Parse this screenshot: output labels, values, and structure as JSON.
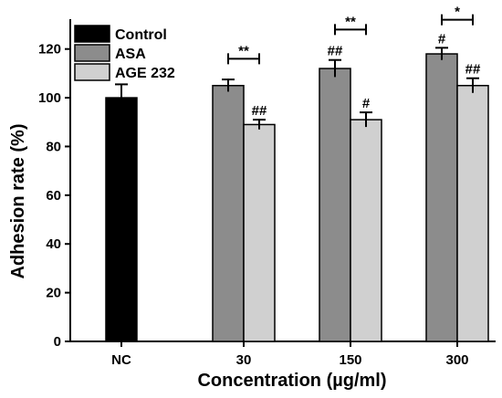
{
  "chart_data": {
    "type": "bar",
    "title": "",
    "xlabel": "Concentration (µg/ml)",
    "ylabel": "Adhesion rate (%)",
    "ylim": [
      0,
      130
    ],
    "yticks": [
      0,
      20,
      40,
      60,
      80,
      100,
      120
    ],
    "categories": [
      "NC",
      "30",
      "150",
      "300"
    ],
    "grid": false,
    "legend_position": "top-left",
    "colors": {
      "Control": "#000000",
      "ASA": "#8c8c8c",
      "AGE 232": "#d0d0d0"
    },
    "series": [
      {
        "name": "Control",
        "values": [
          100,
          null,
          null,
          null
        ],
        "errors": [
          5.5,
          null,
          null,
          null
        ]
      },
      {
        "name": "ASA",
        "values": [
          null,
          105,
          112,
          118
        ],
        "errors": [
          null,
          2.5,
          3.5,
          2.5
        ]
      },
      {
        "name": "AGE 232",
        "values": [
          null,
          89,
          91,
          105
        ],
        "errors": [
          null,
          2,
          3,
          3
        ]
      }
    ],
    "annotations": [
      {
        "category": "30",
        "series": "AGE 232",
        "text": "##"
      },
      {
        "category": "150",
        "series": "ASA",
        "text": "##"
      },
      {
        "category": "150",
        "series": "AGE 232",
        "text": "#"
      },
      {
        "category": "300",
        "series": "ASA",
        "text": "#"
      },
      {
        "category": "300",
        "series": "AGE 232",
        "text": "##"
      }
    ],
    "comparisons": [
      {
        "category": "30",
        "text": "**",
        "value": 116
      },
      {
        "category": "150",
        "text": "**",
        "value": 128
      },
      {
        "category": "300",
        "text": "*",
        "value": 132
      }
    ]
  }
}
